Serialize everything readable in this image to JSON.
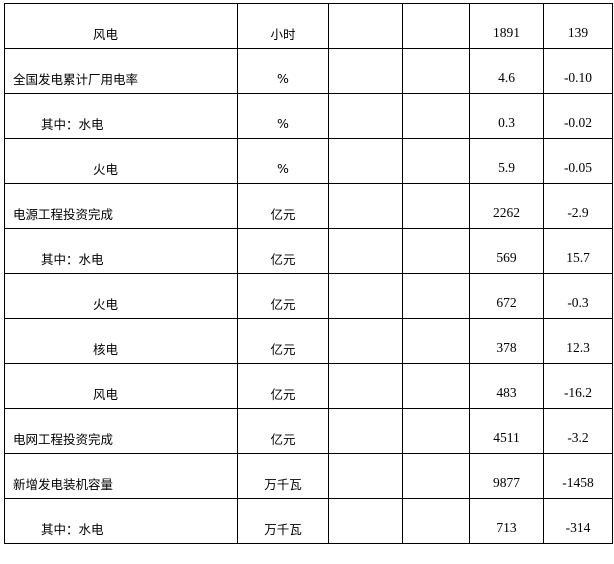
{
  "rows": [
    {
      "name": "风电",
      "level": 2,
      "unit": "小时",
      "c3": "",
      "c4": "",
      "value": "1891",
      "change": "139"
    },
    {
      "name": "全国发电累计厂用电率",
      "level": 0,
      "unit": "%",
      "c3": "",
      "c4": "",
      "value": "4.6",
      "change": "-0.10"
    },
    {
      "name": "其中：水电",
      "level": 1,
      "unit": "%",
      "c3": "",
      "c4": "",
      "value": "0.3",
      "change": "-0.02"
    },
    {
      "name": "火电",
      "level": 2,
      "unit": "%",
      "c3": "",
      "c4": "",
      "value": "5.9",
      "change": "-0.05"
    },
    {
      "name": "电源工程投资完成",
      "level": 0,
      "unit": "亿元",
      "c3": "",
      "c4": "",
      "value": "2262",
      "change": "-2.9"
    },
    {
      "name": "其中：水电",
      "level": 1,
      "unit": "亿元",
      "c3": "",
      "c4": "",
      "value": "569",
      "change": "15.7"
    },
    {
      "name": "火电",
      "level": 2,
      "unit": "亿元",
      "c3": "",
      "c4": "",
      "value": "672",
      "change": "-0.3"
    },
    {
      "name": "核电",
      "level": 2,
      "unit": "亿元",
      "c3": "",
      "c4": "",
      "value": "378",
      "change": "12.3"
    },
    {
      "name": "风电",
      "level": 2,
      "unit": "亿元",
      "c3": "",
      "c4": "",
      "value": "483",
      "change": "-16.2"
    },
    {
      "name": "电网工程投资完成",
      "level": 0,
      "unit": "亿元",
      "c3": "",
      "c4": "",
      "value": "4511",
      "change": "-3.2"
    },
    {
      "name": "新增发电装机容量",
      "level": 0,
      "unit": "万千瓦",
      "c3": "",
      "c4": "",
      "value": "9877",
      "change": "-1458"
    },
    {
      "name": "其中：水电",
      "level": 1,
      "unit": "万千瓦",
      "c3": "",
      "c4": "",
      "value": "713",
      "change": "-314"
    }
  ]
}
